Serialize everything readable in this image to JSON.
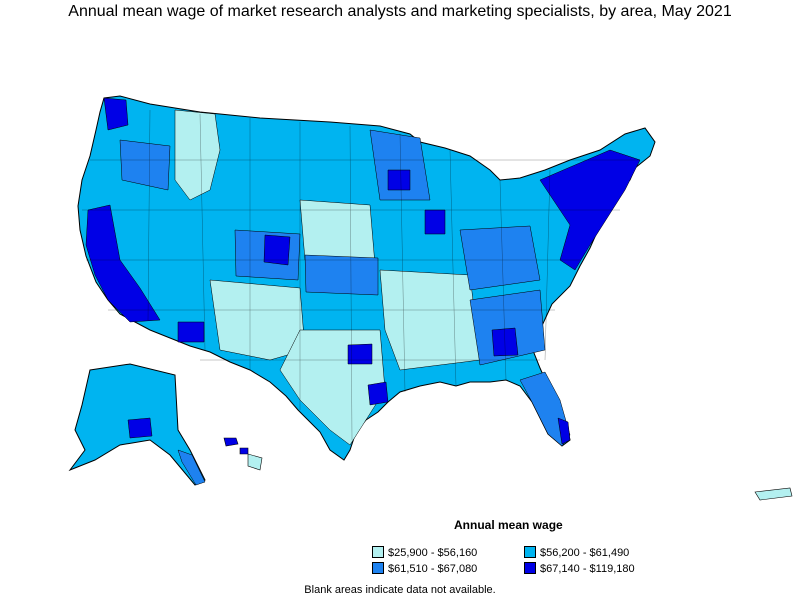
{
  "title": "Annual mean wage of market research analysts and marketing specialists, by area, May 2021",
  "legend": {
    "title": "Annual mean wage",
    "items": [
      {
        "label": "$25,900 - $56,160",
        "color": "#b3f0f0"
      },
      {
        "label": "$56,200 - $61,490",
        "color": "#00b4f0"
      },
      {
        "label": "$61,510 - $67,080",
        "color": "#1e82f0"
      },
      {
        "label": "$67,140 - $119,180",
        "color": "#0000e6"
      }
    ]
  },
  "note": "Blank areas indicate data not available.",
  "colors": {
    "border": "#000000",
    "background": "#ffffff"
  }
}
